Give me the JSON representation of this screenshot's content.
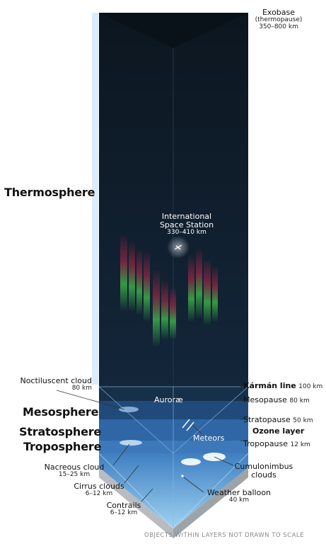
{
  "layers": {
    "thermosphere": "Thermosphere",
    "mesosphere": "Mesosphere",
    "stratosphere": "Stratosphere",
    "troposphere": "Troposphere"
  },
  "boundaries": {
    "exobase_title": "Exobase",
    "exobase_sub": "(thermopause)",
    "exobase_range": "350–800 km",
    "karman_name": "Kármán line",
    "karman_alt": "100 km",
    "mesopause_name": "Mesopause",
    "mesopause_alt": "80 km",
    "stratopause_name": "Stratopause",
    "stratopause_alt": "50 km",
    "ozone": "Ozone layer",
    "tropopause_name": "Tropopause",
    "tropopause_alt": "12 km"
  },
  "objects": {
    "iss_line1": "International",
    "iss_line2": "Space Station",
    "iss_range": "330–410 km",
    "aurorae": "Auroræ",
    "meteors": "Meteors",
    "noctilucent_name": "Noctiluscent cloud",
    "noctilucent_alt": "80 km",
    "nacreous_name": "Nacreous cloud",
    "nacreous_alt": "15–25 km",
    "cirrus_name": "Cirrus clouds",
    "cirrus_alt": "6–12 km",
    "contrails_name": "Contrails",
    "contrails_alt": "6–12 km",
    "cumulonimbus_line1": "Cumulonimbus",
    "cumulonimbus_line2": "clouds",
    "balloon_name": "Weather balloon",
    "balloon_alt": "40 km"
  },
  "footer": "OBJECTS WITHIN LAYERS NOT DRAWN TO SCALE",
  "colors": {
    "space_left": "#0f1a24",
    "space_right": "#0b141d",
    "mesosphere": "#1f4a79",
    "stratosphere": "#2f66a6",
    "troposphere": "#4a89cc",
    "sidebar_light": "#d9ecfb",
    "sidebar_mid": "#8fc4ef",
    "sidebar_dark": "#3f93dc",
    "aurora_green": "#3fbf4a",
    "aurora_red": "#c2284a"
  }
}
